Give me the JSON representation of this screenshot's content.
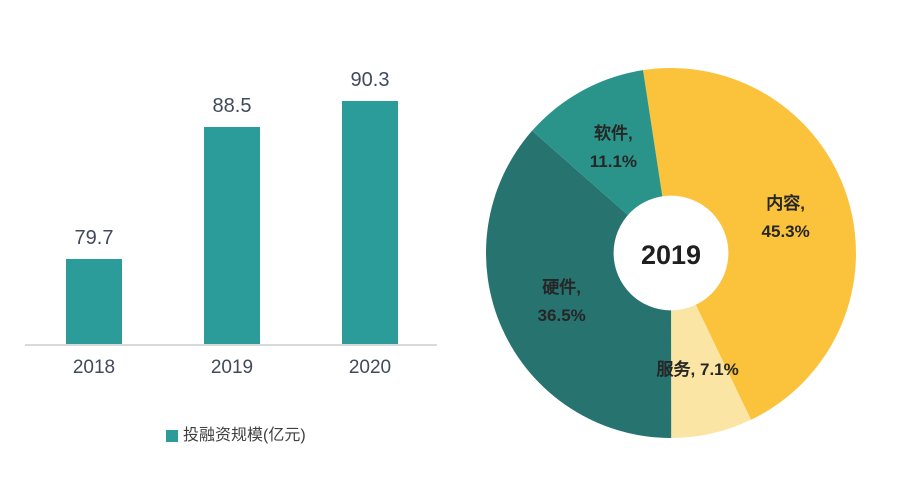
{
  "page": {
    "background": "#ffffff"
  },
  "chart_data": [
    {
      "type": "bar",
      "title": "",
      "categories": [
        "2018",
        "2019",
        "2020"
      ],
      "series": [
        {
          "name": "投融资规模(亿元)",
          "values": [
            79.7,
            88.5,
            90.3
          ]
        }
      ],
      "value_labels": [
        "79.7",
        "88.5",
        "90.3"
      ],
      "xlabel": "",
      "ylabel": "",
      "ylim": [
        74,
        95
      ],
      "grid": false,
      "y_axis_visible": false,
      "legend_position": "bottom",
      "bar_color": "#2b9c99",
      "axis_line_color": "#d9d9d9",
      "label_color": "#404a5c"
    },
    {
      "type": "pie",
      "subtype": "donut",
      "center_label": "2019",
      "start_angle_deg": -8.7,
      "donut_hole_ratio": 0.31,
      "direction": "clockwise",
      "label_color": "#262626",
      "slices": [
        {
          "id": "content",
          "name": "内容",
          "value_pct": 45.3,
          "color": "#fbc23b",
          "label_lines": [
            "内容,",
            "45.3%"
          ]
        },
        {
          "id": "service",
          "name": "服务",
          "value_pct": 7.1,
          "color": "#fae5a4",
          "label_lines": [
            "服务, 7.1%"
          ]
        },
        {
          "id": "hardware",
          "name": "硬件",
          "value_pct": 36.5,
          "color": "#267370",
          "label_lines": [
            "硬件,",
            "36.5%"
          ]
        },
        {
          "id": "software",
          "name": "软件",
          "value_pct": 11.1,
          "color": "#2a948b",
          "label_lines": [
            "软件,",
            "11.1%"
          ]
        }
      ]
    }
  ]
}
